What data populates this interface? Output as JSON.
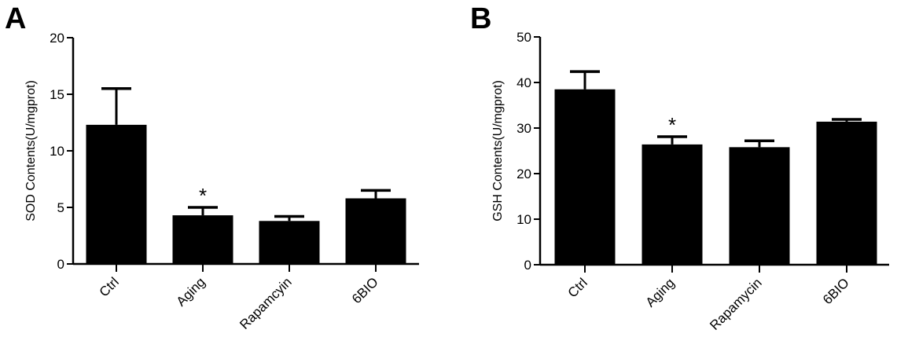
{
  "chart_data": [
    {
      "type": "bar",
      "panel": "A",
      "title": "",
      "xlabel": "",
      "ylabel": "SOD Contents(U/mgprot)",
      "categories": [
        "Ctrl",
        "Aging",
        "Rapamcyin",
        "6BIO"
      ],
      "values": [
        12.3,
        4.3,
        3.8,
        5.8
      ],
      "error_upper": [
        15.5,
        5.0,
        4.2,
        6.5
      ],
      "annotations": [
        {
          "category": "Aging",
          "text": "*"
        }
      ],
      "ylim": [
        0,
        20
      ],
      "yticks": [
        0,
        5,
        10,
        15,
        20
      ],
      "grid": false,
      "color": "#000000"
    },
    {
      "type": "bar",
      "panel": "B",
      "title": "",
      "xlabel": "",
      "ylabel": "GSH Contents(U/mgprot)",
      "categories": [
        "Ctrl",
        "Aging",
        "Rapamycin",
        "6BIO"
      ],
      "values": [
        38.5,
        26.4,
        25.8,
        31.4
      ],
      "error_upper": [
        42.4,
        28.1,
        27.2,
        31.9
      ],
      "annotations": [
        {
          "category": "Aging",
          "text": "*"
        }
      ],
      "ylim": [
        0,
        50
      ],
      "yticks": [
        0,
        10,
        20,
        30,
        40,
        50
      ],
      "grid": false,
      "color": "#000000"
    }
  ]
}
